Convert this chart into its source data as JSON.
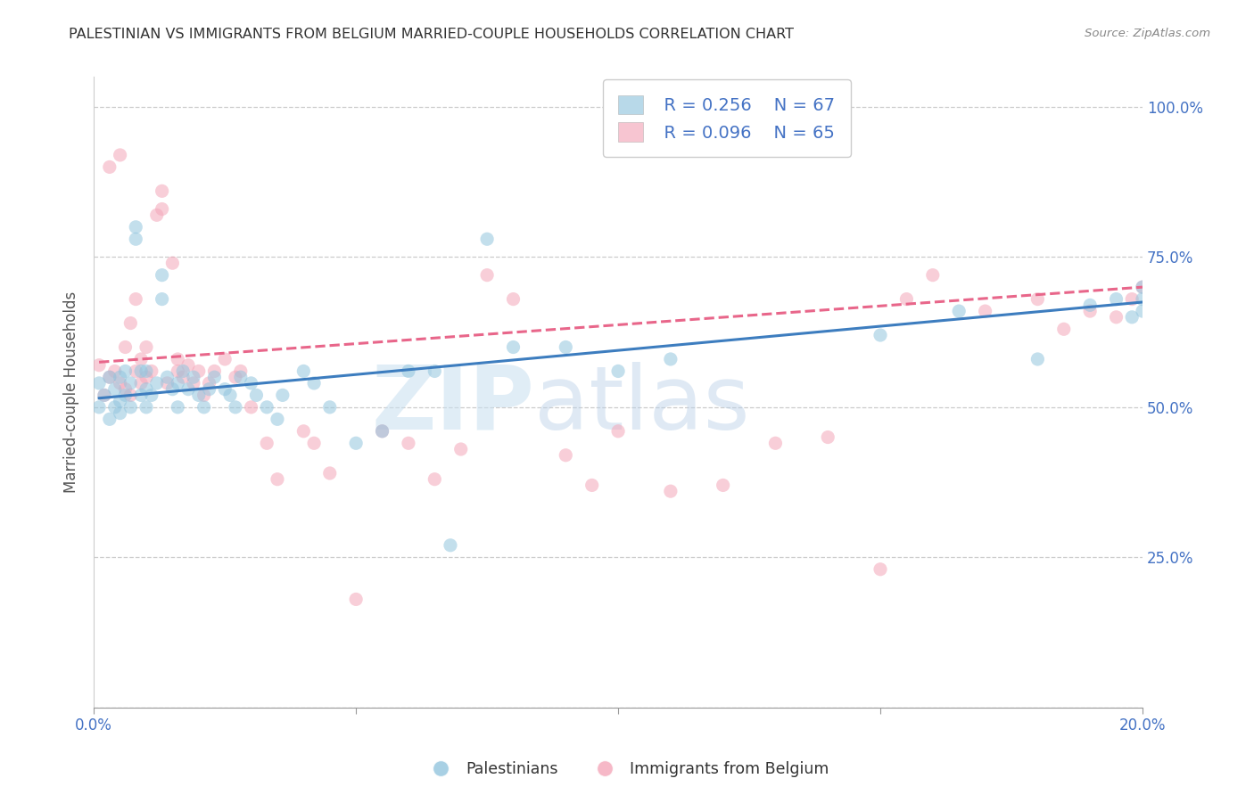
{
  "title": "PALESTINIAN VS IMMIGRANTS FROM BELGIUM MARRIED-COUPLE HOUSEHOLDS CORRELATION CHART",
  "source": "Source: ZipAtlas.com",
  "ylabel": "Married-couple Households",
  "xlim": [
    0.0,
    0.2
  ],
  "ylim": [
    0.0,
    1.05
  ],
  "yticks": [
    0.0,
    0.25,
    0.5,
    0.75,
    1.0
  ],
  "ytick_labels": [
    "",
    "25.0%",
    "50.0%",
    "75.0%",
    "100.0%"
  ],
  "xticks": [
    0.0,
    0.05,
    0.1,
    0.15,
    0.2
  ],
  "xtick_labels": [
    "0.0%",
    "",
    "",
    "",
    "20.0%"
  ],
  "legend_r1": "R = 0.256",
  "legend_n1": "N = 67",
  "legend_r2": "R = 0.096",
  "legend_n2": "N = 65",
  "blue_color": "#92c5de",
  "pink_color": "#f4a7b9",
  "blue_line_color": "#3d7dbf",
  "pink_line_color": "#e8668a",
  "label1": "Palestinians",
  "label2": "Immigrants from Belgium",
  "watermark_zip": "ZIP",
  "watermark_atlas": "atlas",
  "blue_x": [
    0.001,
    0.001,
    0.002,
    0.003,
    0.003,
    0.004,
    0.004,
    0.005,
    0.005,
    0.005,
    0.006,
    0.006,
    0.007,
    0.007,
    0.008,
    0.008,
    0.009,
    0.009,
    0.01,
    0.01,
    0.01,
    0.011,
    0.012,
    0.013,
    0.013,
    0.014,
    0.015,
    0.016,
    0.016,
    0.017,
    0.018,
    0.019,
    0.02,
    0.021,
    0.022,
    0.023,
    0.025,
    0.026,
    0.027,
    0.028,
    0.03,
    0.031,
    0.033,
    0.035,
    0.036,
    0.04,
    0.042,
    0.045,
    0.05,
    0.055,
    0.06,
    0.065,
    0.068,
    0.075,
    0.08,
    0.09,
    0.1,
    0.11,
    0.15,
    0.165,
    0.18,
    0.19,
    0.195,
    0.198,
    0.2,
    0.2,
    0.2
  ],
  "blue_y": [
    0.54,
    0.5,
    0.52,
    0.48,
    0.55,
    0.5,
    0.53,
    0.51,
    0.49,
    0.55,
    0.52,
    0.56,
    0.5,
    0.54,
    0.78,
    0.8,
    0.52,
    0.56,
    0.5,
    0.53,
    0.56,
    0.52,
    0.54,
    0.72,
    0.68,
    0.55,
    0.53,
    0.5,
    0.54,
    0.56,
    0.53,
    0.55,
    0.52,
    0.5,
    0.53,
    0.55,
    0.53,
    0.52,
    0.5,
    0.55,
    0.54,
    0.52,
    0.5,
    0.48,
    0.52,
    0.56,
    0.54,
    0.5,
    0.44,
    0.46,
    0.56,
    0.56,
    0.27,
    0.78,
    0.6,
    0.6,
    0.56,
    0.58,
    0.62,
    0.66,
    0.58,
    0.67,
    0.68,
    0.65,
    0.66,
    0.68,
    0.7
  ],
  "pink_x": [
    0.001,
    0.002,
    0.003,
    0.003,
    0.004,
    0.005,
    0.005,
    0.006,
    0.006,
    0.007,
    0.007,
    0.008,
    0.008,
    0.009,
    0.009,
    0.01,
    0.01,
    0.011,
    0.012,
    0.013,
    0.013,
    0.014,
    0.015,
    0.016,
    0.016,
    0.017,
    0.018,
    0.019,
    0.02,
    0.021,
    0.022,
    0.023,
    0.025,
    0.027,
    0.028,
    0.03,
    0.033,
    0.035,
    0.04,
    0.042,
    0.045,
    0.05,
    0.055,
    0.06,
    0.065,
    0.07,
    0.075,
    0.08,
    0.09,
    0.095,
    0.1,
    0.11,
    0.12,
    0.13,
    0.14,
    0.15,
    0.155,
    0.16,
    0.17,
    0.18,
    0.185,
    0.19,
    0.195,
    0.198,
    0.2
  ],
  "pink_y": [
    0.57,
    0.52,
    0.55,
    0.9,
    0.56,
    0.54,
    0.92,
    0.53,
    0.6,
    0.52,
    0.64,
    0.56,
    0.68,
    0.54,
    0.58,
    0.55,
    0.6,
    0.56,
    0.82,
    0.83,
    0.86,
    0.54,
    0.74,
    0.56,
    0.58,
    0.55,
    0.57,
    0.54,
    0.56,
    0.52,
    0.54,
    0.56,
    0.58,
    0.55,
    0.56,
    0.5,
    0.44,
    0.38,
    0.46,
    0.44,
    0.39,
    0.18,
    0.46,
    0.44,
    0.38,
    0.43,
    0.72,
    0.68,
    0.42,
    0.37,
    0.46,
    0.36,
    0.37,
    0.44,
    0.45,
    0.23,
    0.68,
    0.72,
    0.66,
    0.68,
    0.63,
    0.66,
    0.65,
    0.68,
    0.7
  ],
  "blue_line_x": [
    0.001,
    0.2
  ],
  "blue_line_y": [
    0.515,
    0.675
  ],
  "pink_line_x": [
    0.001,
    0.2
  ],
  "pink_line_y": [
    0.575,
    0.7
  ],
  "title_fontsize": 11.5,
  "axis_label_fontsize": 12,
  "tick_fontsize": 12,
  "legend_fontsize": 14,
  "background_color": "#ffffff",
  "grid_color": "#cccccc"
}
